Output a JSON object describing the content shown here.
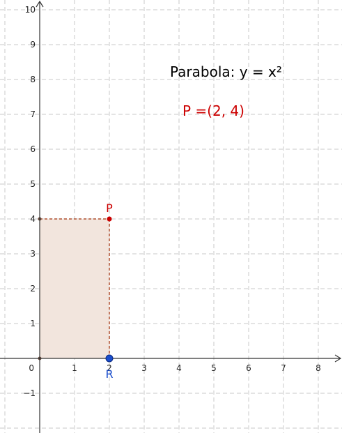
{
  "title": "Parabola: y = x²",
  "coordinate_readout": "P =(2, 4)",
  "colors": {
    "grid": "#c8c8c8",
    "axis": "#333333",
    "point_p": "#cc0000",
    "point_r": "#1a4dcc",
    "rect_fill": "#f2e5dd",
    "rect_stroke": "#b05030",
    "title": "#000000"
  },
  "chart_data": {
    "type": "scatter",
    "title": "Parabola: y = x²",
    "xlim": [
      -1,
      8.5
    ],
    "ylim": [
      -2.1,
      10.3
    ],
    "grid": true,
    "x_ticks": [
      0,
      1,
      2,
      3,
      4,
      5,
      6,
      7,
      8
    ],
    "y_ticks": [
      -1,
      1,
      2,
      3,
      4,
      5,
      6,
      7,
      8,
      9,
      10
    ],
    "origin_label": "0",
    "points": [
      {
        "name": "P",
        "x": 2,
        "y": 4,
        "color": "#cc0000"
      },
      {
        "name": "R",
        "x": 2,
        "y": 0,
        "color": "#1a4dcc"
      }
    ],
    "rectangle": {
      "x0": 0,
      "y0": 0,
      "x1": 2,
      "y1": 4
    }
  }
}
